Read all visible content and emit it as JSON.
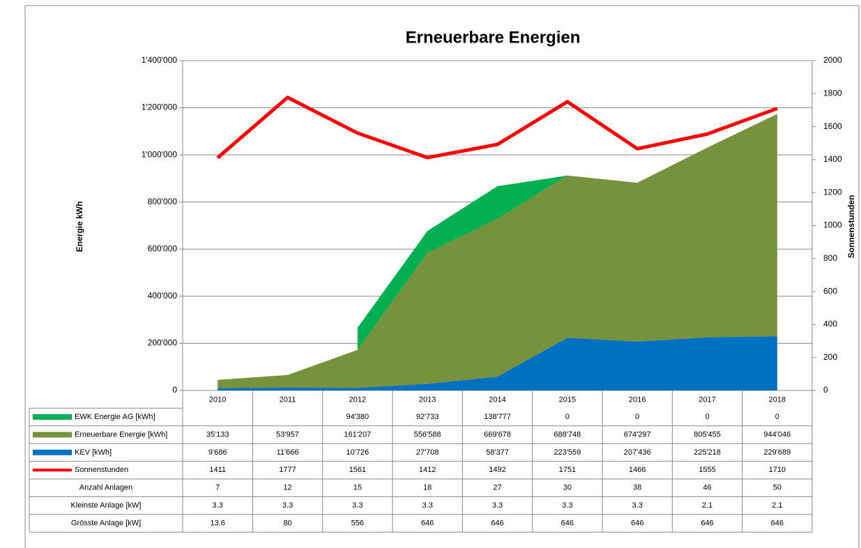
{
  "chart_data": {
    "type": "stacked_area_line",
    "title": "Erneuerbare Energien",
    "y_label": "Energie kWh",
    "y2_label": "Sonnenstunden",
    "categories": [
      "2010",
      "2011",
      "2012",
      "2013",
      "2014",
      "2015",
      "2016",
      "2017",
      "2018"
    ],
    "ylim": [
      0,
      1400000
    ],
    "yticks": [
      0,
      {
        "value": 200000,
        "label": "200'000"
      },
      {
        "value": 400000,
        "label": "400'000"
      },
      {
        "value": 600000,
        "label": "600'000"
      },
      {
        "value": 800000,
        "label": "800'000"
      },
      {
        "value": 1000000,
        "label": "1'000'000"
      },
      {
        "value": 1200000,
        "label": "1'200'000"
      },
      {
        "value": 1400000,
        "label": "1'400'000"
      }
    ],
    "y2lim": [
      0,
      2000
    ],
    "y2ticks": [
      0,
      200,
      400,
      600,
      800,
      1000,
      1200,
      1400,
      1600,
      1800,
      2000
    ],
    "grid": true,
    "series": [
      {
        "name": "EWK Energie AG [kWh]",
        "color": "#00b050",
        "kind": "area",
        "values": [
          null,
          null,
          94380,
          92733,
          138777,
          0,
          0,
          0,
          0
        ],
        "value_labels": [
          null,
          null,
          "94'380",
          "92'733",
          "138'777",
          "0",
          "0",
          "0",
          "0"
        ]
      },
      {
        "name": "Erneuerbare Energie [kWh]",
        "color": "#76923c",
        "kind": "area",
        "values": [
          35133,
          53957,
          161207,
          556588,
          669678,
          688748,
          674297,
          805455,
          944046
        ],
        "value_labels": [
          "35'133",
          "53'957",
          "161'207",
          "556'588",
          "669'678",
          "688'748",
          "674'297",
          "805'455",
          "944'046"
        ]
      },
      {
        "name": "KEV [kWh]",
        "color": "#0070c0",
        "kind": "area",
        "values": [
          9686,
          11666,
          10726,
          27708,
          58377,
          223559,
          207436,
          225218,
          229689
        ],
        "value_labels": [
          "9'686",
          "11'666",
          "10'726",
          "27'708",
          "58'377",
          "223'559",
          "207'436",
          "225'218",
          "229'689"
        ]
      },
      {
        "name": "Sonnenstunden",
        "color": "#ff0000",
        "kind": "line",
        "axis": "y2",
        "values": [
          1411,
          1777,
          1561,
          1412,
          1492,
          1751,
          1466,
          1555,
          1710
        ]
      }
    ],
    "table_rows": [
      {
        "name": "Anzahl Anlagen",
        "values": [
          7,
          12,
          15,
          18,
          27,
          30,
          38,
          46,
          50
        ]
      },
      {
        "name": "Kleinste Anlage [kW]",
        "values": [
          3.3,
          3.3,
          3.3,
          3.3,
          3.3,
          3.3,
          3.3,
          2.1,
          2.1
        ]
      },
      {
        "name": "Grösste Anlage [kW]",
        "values": [
          13.6,
          80,
          556,
          646,
          646,
          646,
          646,
          646,
          646
        ]
      }
    ]
  }
}
